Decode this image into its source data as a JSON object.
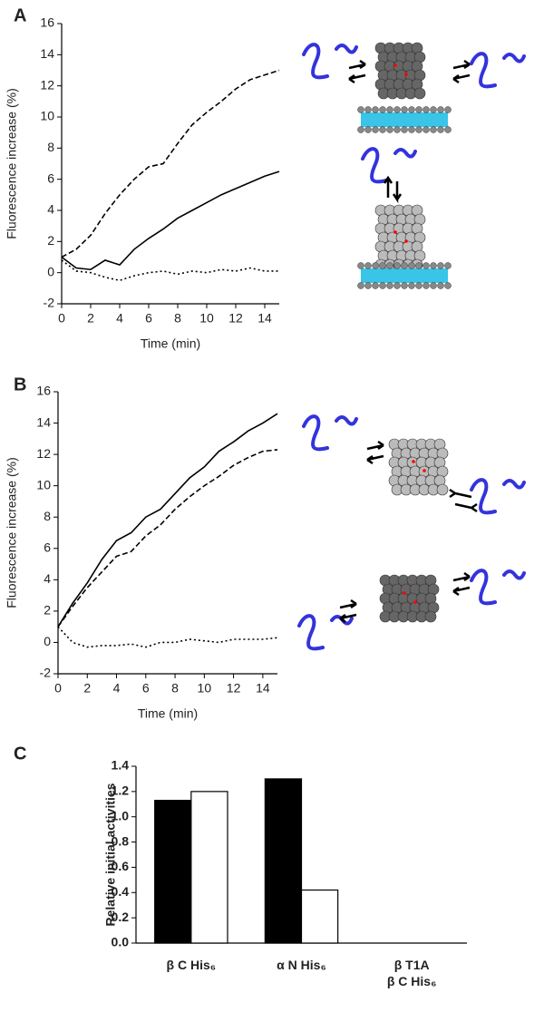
{
  "chart_data": [
    {
      "type": "line",
      "panel_label": "A",
      "ylabel": "Fluorescence increase (%)",
      "xlabel": "Time (min)",
      "x": [
        0,
        1,
        2,
        3,
        4,
        5,
        6,
        7,
        8,
        9,
        10,
        11,
        12,
        13,
        14,
        15
      ],
      "xlim": [
        0,
        15
      ],
      "xticks": [
        0,
        2,
        4,
        6,
        8,
        10,
        12,
        14
      ],
      "ylim": [
        -2,
        16
      ],
      "yticks": [
        -2,
        0,
        2,
        4,
        6,
        8,
        10,
        12,
        14,
        16
      ],
      "series": [
        {
          "color": "#000000",
          "dash": "dashed",
          "values": [
            1.0,
            1.5,
            2.4,
            3.8,
            5.0,
            6.0,
            6.8,
            7.0,
            8.3,
            9.5,
            10.3,
            11.0,
            11.8,
            12.4,
            12.7,
            13.0
          ]
        },
        {
          "color": "#000000",
          "dash": "solid",
          "values": [
            1.0,
            0.3,
            0.2,
            0.8,
            0.5,
            1.5,
            2.2,
            2.8,
            3.5,
            4.0,
            4.5,
            5.0,
            5.4,
            5.8,
            6.2,
            6.5
          ]
        },
        {
          "color": "#000000",
          "dash": "dotted",
          "values": [
            0.8,
            0.1,
            0,
            -0.3,
            -0.5,
            -0.2,
            0,
            0.1,
            -0.1,
            0.1,
            0,
            0.2,
            0.1,
            0.3,
            0.1,
            0.1
          ]
        }
      ]
    },
    {
      "type": "line",
      "panel_label": "B",
      "ylabel": "Fluorescence increase (%)",
      "xlabel": "Time (min)",
      "x": [
        0,
        1,
        2,
        3,
        4,
        5,
        6,
        7,
        8,
        9,
        10,
        11,
        12,
        13,
        14,
        15
      ],
      "xlim": [
        0,
        15
      ],
      "xticks": [
        0,
        2,
        4,
        6,
        8,
        10,
        12,
        14
      ],
      "ylim": [
        -2,
        16
      ],
      "yticks": [
        -2,
        0,
        2,
        4,
        6,
        8,
        10,
        12,
        14,
        16
      ],
      "series": [
        {
          "color": "#000000",
          "dash": "solid",
          "values": [
            1.0,
            2.5,
            3.8,
            5.3,
            6.5,
            7.0,
            8.0,
            8.5,
            9.5,
            10.5,
            11.2,
            12.2,
            12.8,
            13.5,
            14.0,
            14.6
          ]
        },
        {
          "color": "#000000",
          "dash": "dashed",
          "values": [
            1.0,
            2.3,
            3.5,
            4.5,
            5.5,
            5.8,
            6.8,
            7.5,
            8.5,
            9.3,
            10.0,
            10.6,
            11.3,
            11.8,
            12.2,
            12.3
          ]
        },
        {
          "color": "#000000",
          "dash": "dotted",
          "values": [
            1.0,
            0,
            -0.3,
            -0.2,
            -0.2,
            -0.1,
            -0.3,
            0,
            0,
            0.2,
            0.1,
            0,
            0.2,
            0.2,
            0.2,
            0.3
          ]
        }
      ]
    },
    {
      "type": "bar",
      "panel_label": "C",
      "ylabel": "Relative initial activities",
      "categories": [
        "β C His₆",
        "α N His₆",
        "β T1A\nβ C His₆"
      ],
      "ylim": [
        0,
        1.4
      ],
      "yticks": [
        {
          "value": 0,
          "label": "0.0"
        },
        0.2,
        0.4,
        0.6,
        0.8,
        {
          "value": 1,
          "label": "1.0"
        },
        1.2,
        1.4
      ],
      "series": [
        {
          "color": "#000000",
          "values": [
            1.13,
            1.3,
            null
          ]
        },
        {
          "color": "#ffffff",
          "values": [
            1.2,
            0.42,
            null
          ]
        }
      ]
    }
  ]
}
